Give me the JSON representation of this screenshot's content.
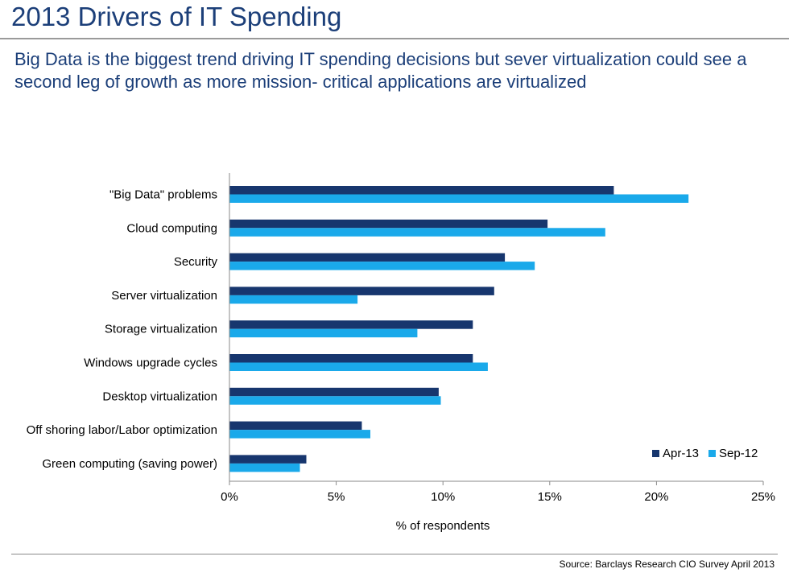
{
  "page": {
    "title": "2013 Drivers of IT Spending",
    "subtitle": "Big Data is the biggest trend driving IT spending decisions but sever virtualization could see a second leg of growth as more mission- critical applications are virtualized",
    "source": "Source: Barclays Research CIO Survey April 2013"
  },
  "chart_data": {
    "type": "bar",
    "orientation": "horizontal",
    "categories": [
      "\"Big Data\" problems",
      "Cloud computing",
      "Security",
      "Server virtualization",
      "Storage virtualization",
      "Windows upgrade cycles",
      "Desktop virtualization",
      "Off shoring labor/Labor optimization",
      "Green computing (saving power)"
    ],
    "series": [
      {
        "name": "Apr-13",
        "color": "#17366e",
        "values": [
          18.0,
          14.9,
          12.9,
          12.4,
          11.4,
          11.4,
          9.8,
          6.2,
          3.6
        ]
      },
      {
        "name": "Sep-12",
        "color": "#1aa9ea",
        "values": [
          21.5,
          17.6,
          14.3,
          6.0,
          8.8,
          12.1,
          9.9,
          6.6,
          3.3
        ]
      }
    ],
    "xlabel": "% of respondents",
    "xlim": [
      0,
      25
    ],
    "xticks": [
      0,
      5,
      10,
      15,
      20,
      25
    ],
    "tick_labels": [
      "0%",
      "5%",
      "10%",
      "15%",
      "20%",
      "25%"
    ],
    "grid": false,
    "legend_position": "bottom-right"
  }
}
